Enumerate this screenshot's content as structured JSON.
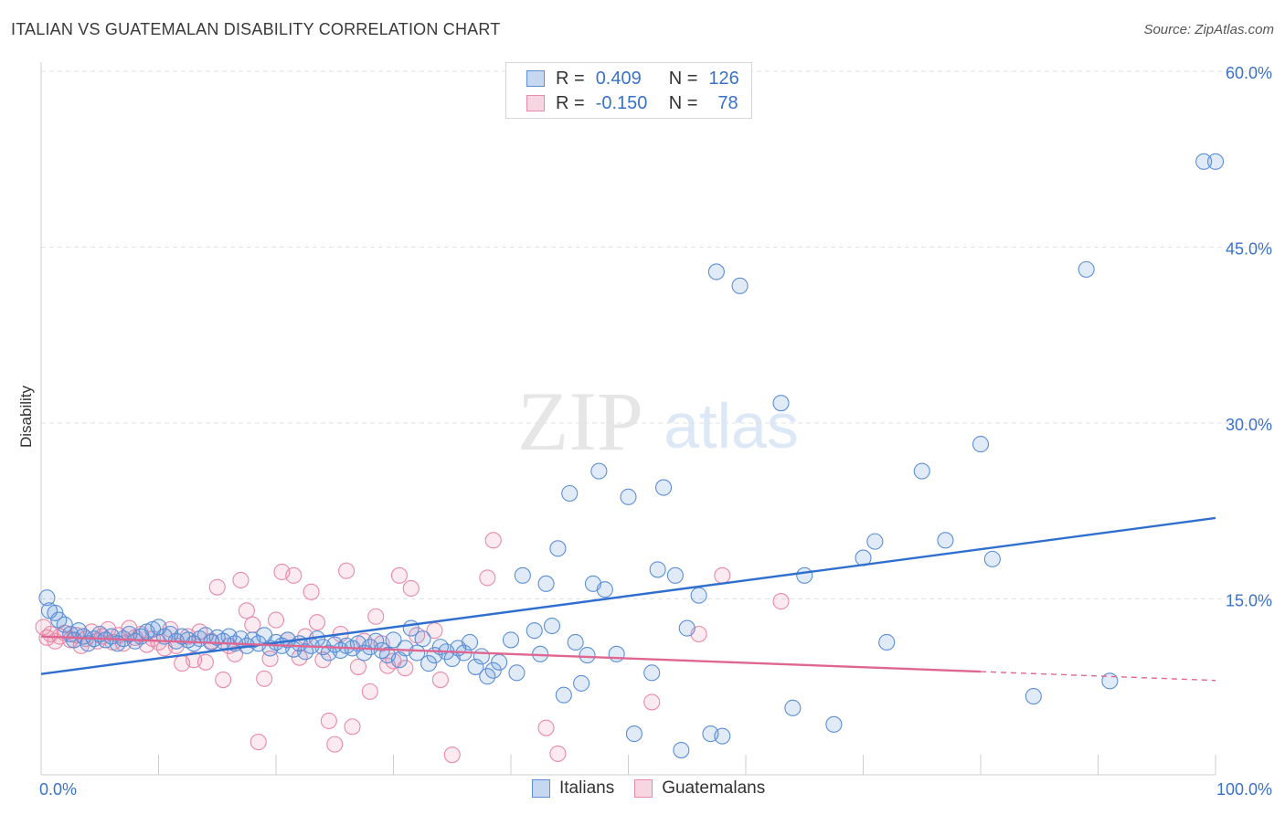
{
  "title": "ITALIAN VS GUATEMALAN DISABILITY CORRELATION CHART",
  "source": "Source: ZipAtlas.com",
  "watermark": {
    "zip": "ZIP",
    "atlas": "atlas"
  },
  "legend": {
    "rows": [
      {
        "r_label": "R =",
        "r_value": "0.409",
        "n_label": "N =",
        "n_value": "126",
        "color": "#5b8fd6"
      },
      {
        "r_label": "R =",
        "r_value": "-0.150",
        "n_label": "N =",
        "n_value": "78",
        "color": "#e88aa8"
      }
    ]
  },
  "bottom_legend": [
    "Italians",
    "Guatemalans"
  ],
  "chart_data": {
    "type": "scatter",
    "title": "ITALIAN VS GUATEMALAN DISABILITY CORRELATION CHART",
    "xlabel": "",
    "ylabel": "Disability",
    "xlim": [
      0,
      100
    ],
    "ylim": [
      0,
      60
    ],
    "x_tick_labels": [
      "0.0%",
      "100.0%"
    ],
    "y_ticks": [
      15,
      30,
      45,
      60
    ],
    "y_tick_labels": [
      "15.0%",
      "30.0%",
      "45.0%",
      "60.0%"
    ],
    "grid": true,
    "legend_position": "top-center",
    "series": [
      {
        "name": "Italians",
        "color": "#5b8fd6",
        "trend": {
          "x": [
            0,
            100
          ],
          "y": [
            8.6,
            21.9
          ]
        },
        "points": [
          [
            0.5,
            15.1
          ],
          [
            0.7,
            14.0
          ],
          [
            1.2,
            13.8
          ],
          [
            1.5,
            13.2
          ],
          [
            2.0,
            12.8
          ],
          [
            2.5,
            12.0
          ],
          [
            2.8,
            11.5
          ],
          [
            3.2,
            12.3
          ],
          [
            3.6,
            11.8
          ],
          [
            4.0,
            11.2
          ],
          [
            4.5,
            11.6
          ],
          [
            5.0,
            12.0
          ],
          [
            5.5,
            11.5
          ],
          [
            6.0,
            11.8
          ],
          [
            6.5,
            11.2
          ],
          [
            7.0,
            11.6
          ],
          [
            7.5,
            12.0
          ],
          [
            8.0,
            11.4
          ],
          [
            8.5,
            11.8
          ],
          [
            9.0,
            12.2
          ],
          [
            9.5,
            12.4
          ],
          [
            10.0,
            12.6
          ],
          [
            10.5,
            11.8
          ],
          [
            11.0,
            12.0
          ],
          [
            11.5,
            11.4
          ],
          [
            12.0,
            11.8
          ],
          [
            12.5,
            11.5
          ],
          [
            13.0,
            11.2
          ],
          [
            13.5,
            11.6
          ],
          [
            14.0,
            11.9
          ],
          [
            14.5,
            11.3
          ],
          [
            15.0,
            11.7
          ],
          [
            15.5,
            11.4
          ],
          [
            16.0,
            11.8
          ],
          [
            16.5,
            11.2
          ],
          [
            17.0,
            11.6
          ],
          [
            17.5,
            11.0
          ],
          [
            18.0,
            11.5
          ],
          [
            18.5,
            11.2
          ],
          [
            19.0,
            11.9
          ],
          [
            19.5,
            10.8
          ],
          [
            20.0,
            11.3
          ],
          [
            20.5,
            11.0
          ],
          [
            21.0,
            11.5
          ],
          [
            21.5,
            10.7
          ],
          [
            22.0,
            11.2
          ],
          [
            22.5,
            10.5
          ],
          [
            23.0,
            11.0
          ],
          [
            23.5,
            11.6
          ],
          [
            24.0,
            10.9
          ],
          [
            24.5,
            10.4
          ],
          [
            25.0,
            11.1
          ],
          [
            25.5,
            10.6
          ],
          [
            26.0,
            11.0
          ],
          [
            26.5,
            10.8
          ],
          [
            27.0,
            11.2
          ],
          [
            27.5,
            10.4
          ],
          [
            28.0,
            10.9
          ],
          [
            28.5,
            11.4
          ],
          [
            29.0,
            10.6
          ],
          [
            29.5,
            10.2
          ],
          [
            30.0,
            11.5
          ],
          [
            30.5,
            9.8
          ],
          [
            31.0,
            10.8
          ],
          [
            31.5,
            12.5
          ],
          [
            32.0,
            10.4
          ],
          [
            32.5,
            11.6
          ],
          [
            33.0,
            9.5
          ],
          [
            33.5,
            10.2
          ],
          [
            34.0,
            10.9
          ],
          [
            34.5,
            10.5
          ],
          [
            35.0,
            9.9
          ],
          [
            35.5,
            10.8
          ],
          [
            36.0,
            10.4
          ],
          [
            36.5,
            11.3
          ],
          [
            37.0,
            9.2
          ],
          [
            37.5,
            10.1
          ],
          [
            38.0,
            8.4
          ],
          [
            38.5,
            8.9
          ],
          [
            39.0,
            9.6
          ],
          [
            40.0,
            11.5
          ],
          [
            40.5,
            8.7
          ],
          [
            41.0,
            17.0
          ],
          [
            42.0,
            12.3
          ],
          [
            42.5,
            10.3
          ],
          [
            43.0,
            16.3
          ],
          [
            43.5,
            12.7
          ],
          [
            44.0,
            19.3
          ],
          [
            44.5,
            6.8
          ],
          [
            45.0,
            24.0
          ],
          [
            45.5,
            11.3
          ],
          [
            46.0,
            7.8
          ],
          [
            46.5,
            10.2
          ],
          [
            47.0,
            16.3
          ],
          [
            47.5,
            25.9
          ],
          [
            48.0,
            15.8
          ],
          [
            49.0,
            10.3
          ],
          [
            50.0,
            23.7
          ],
          [
            50.5,
            3.5
          ],
          [
            52.0,
            8.7
          ],
          [
            52.5,
            17.5
          ],
          [
            53.0,
            24.5
          ],
          [
            54.0,
            17.0
          ],
          [
            54.5,
            2.1
          ],
          [
            55.0,
            12.5
          ],
          [
            56.0,
            15.3
          ],
          [
            57.0,
            3.5
          ],
          [
            57.5,
            42.9
          ],
          [
            58.0,
            3.3
          ],
          [
            59.5,
            41.7
          ],
          [
            63.0,
            31.7
          ],
          [
            64.0,
            5.7
          ],
          [
            65.0,
            17.0
          ],
          [
            67.5,
            4.3
          ],
          [
            70.0,
            18.5
          ],
          [
            71.0,
            19.9
          ],
          [
            72.0,
            11.3
          ],
          [
            75.0,
            25.9
          ],
          [
            77.0,
            20.0
          ],
          [
            80.0,
            28.2
          ],
          [
            81.0,
            18.4
          ],
          [
            84.5,
            6.7
          ],
          [
            89.0,
            43.1
          ],
          [
            91.0,
            8.0
          ],
          [
            100.0,
            52.3
          ],
          [
            99.0,
            52.3
          ]
        ]
      },
      {
        "name": "Guatemalans",
        "color": "#e88aa8",
        "trend": {
          "x": [
            0,
            80
          ],
          "y": [
            11.8,
            8.8
          ]
        },
        "points": [
          [
            0.2,
            12.6
          ],
          [
            0.5,
            11.7
          ],
          [
            0.8,
            12.0
          ],
          [
            1.2,
            11.4
          ],
          [
            1.6,
            11.8
          ],
          [
            2.0,
            12.1
          ],
          [
            2.5,
            11.5
          ],
          [
            3.0,
            11.9
          ],
          [
            3.4,
            11.0
          ],
          [
            3.8,
            11.6
          ],
          [
            4.3,
            12.2
          ],
          [
            4.8,
            11.4
          ],
          [
            5.2,
            11.8
          ],
          [
            5.7,
            12.4
          ],
          [
            6.1,
            11.3
          ],
          [
            6.6,
            11.9
          ],
          [
            7.0,
            11.2
          ],
          [
            7.5,
            12.5
          ],
          [
            8.0,
            11.7
          ],
          [
            8.5,
            12.0
          ],
          [
            9.0,
            11.1
          ],
          [
            9.5,
            11.6
          ],
          [
            10.0,
            11.3
          ],
          [
            10.5,
            10.8
          ],
          [
            11.0,
            12.4
          ],
          [
            11.5,
            11.0
          ],
          [
            12.0,
            9.5
          ],
          [
            12.5,
            11.8
          ],
          [
            13.0,
            9.8
          ],
          [
            13.5,
            12.2
          ],
          [
            14.0,
            9.6
          ],
          [
            14.5,
            11.4
          ],
          [
            15.0,
            16.0
          ],
          [
            15.5,
            8.1
          ],
          [
            16.0,
            11.0
          ],
          [
            16.5,
            10.3
          ],
          [
            17.0,
            16.6
          ],
          [
            17.5,
            14.0
          ],
          [
            18.0,
            12.8
          ],
          [
            18.5,
            2.8
          ],
          [
            19.0,
            8.2
          ],
          [
            19.5,
            9.9
          ],
          [
            20.0,
            13.2
          ],
          [
            20.5,
            17.3
          ],
          [
            21.0,
            11.5
          ],
          [
            21.5,
            17.0
          ],
          [
            22.0,
            10.0
          ],
          [
            22.5,
            11.8
          ],
          [
            23.0,
            15.6
          ],
          [
            23.5,
            13.0
          ],
          [
            24.0,
            9.8
          ],
          [
            24.5,
            4.6
          ],
          [
            25.0,
            2.6
          ],
          [
            25.5,
            12.0
          ],
          [
            26.0,
            17.4
          ],
          [
            26.5,
            4.1
          ],
          [
            27.0,
            9.2
          ],
          [
            27.5,
            11.4
          ],
          [
            28.0,
            7.1
          ],
          [
            28.5,
            13.5
          ],
          [
            29.0,
            11.2
          ],
          [
            29.5,
            9.3
          ],
          [
            30.0,
            9.7
          ],
          [
            30.5,
            17.0
          ],
          [
            31.0,
            9.1
          ],
          [
            31.5,
            15.9
          ],
          [
            32.0,
            11.9
          ],
          [
            33.5,
            12.3
          ],
          [
            34.0,
            8.1
          ],
          [
            35.0,
            1.7
          ],
          [
            38.0,
            16.8
          ],
          [
            38.5,
            20.0
          ],
          [
            43.0,
            4.0
          ],
          [
            44.0,
            1.8
          ],
          [
            52.0,
            6.2
          ],
          [
            56.0,
            12.0
          ],
          [
            58.0,
            17.0
          ],
          [
            63.0,
            14.8
          ]
        ]
      }
    ]
  }
}
